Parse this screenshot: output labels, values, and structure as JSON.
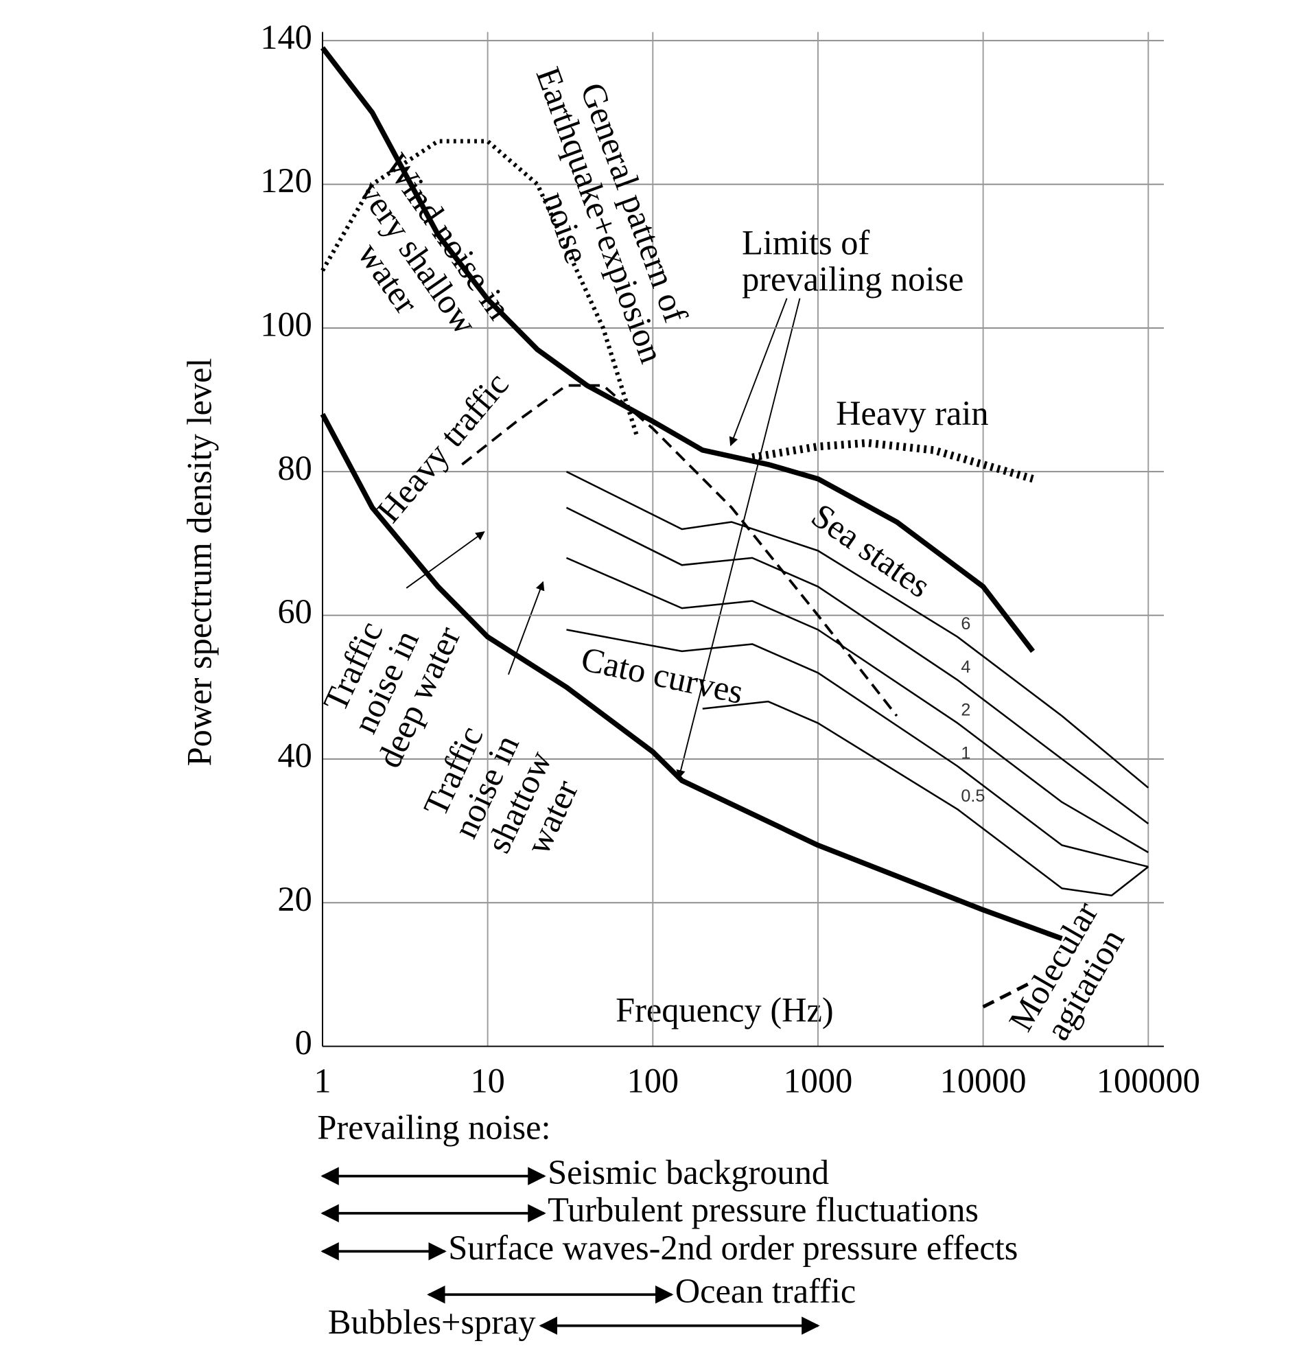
{
  "chart_data": {
    "type": "line",
    "xlabel": "Frequency (Hz)",
    "ylabel": "Power spectrum density level",
    "xscale": "log",
    "xlim": [
      1,
      100000
    ],
    "xticks": [
      1,
      10,
      100,
      1000,
      10000,
      100000
    ],
    "ylim": [
      0,
      140
    ],
    "yticks": [
      0,
      20,
      40,
      60,
      80,
      100,
      120,
      140
    ],
    "grid": true,
    "series": [
      {
        "color": "#000000",
        "style": "solid",
        "width": 6,
        "x": [
          1,
          2,
          5,
          10,
          20,
          40,
          100,
          200,
          500,
          1000,
          3000,
          10000,
          20000
        ],
        "values": [
          139,
          130,
          113,
          104,
          97,
          92,
          87,
          83,
          81,
          79,
          73,
          64,
          55
        ]
      },
      {
        "color": "#000000",
        "style": "solid",
        "width": 6,
        "x": [
          1,
          2,
          5,
          10,
          30,
          100,
          150,
          1000,
          10000,
          30000
        ],
        "values": [
          88,
          75,
          64,
          57,
          50,
          41,
          37,
          28,
          19,
          15
        ]
      },
      {
        "color": "#000000",
        "style": "dotted",
        "width": 9,
        "x": [
          400,
          1000,
          2000,
          5000,
          10000,
          20000
        ],
        "values": [
          82,
          83.5,
          84,
          83,
          81,
          79
        ]
      },
      {
        "color": "#000000",
        "style": "dotted",
        "width": 5,
        "x": [
          1,
          2,
          5,
          10,
          20,
          50,
          80
        ],
        "values": [
          108,
          120,
          126,
          126,
          120,
          100,
          85
        ]
      },
      {
        "color": "#000000",
        "style": "dashed",
        "width": 3,
        "x": [
          7,
          15,
          30,
          50,
          100,
          300,
          1000,
          3000
        ],
        "values": [
          81,
          87,
          92,
          92,
          86,
          75,
          60,
          46
        ]
      },
      {
        "name": "6",
        "color": "#000000",
        "style": "solid",
        "width": 2,
        "x": [
          30,
          150,
          300,
          1000,
          7000,
          30000,
          100000
        ],
        "values": [
          80,
          72,
          73,
          69,
          57,
          46,
          36
        ]
      },
      {
        "name": "4",
        "color": "#000000",
        "style": "solid",
        "width": 2,
        "x": [
          30,
          150,
          400,
          1000,
          7000,
          30000,
          100000
        ],
        "values": [
          75,
          67,
          68,
          64,
          51,
          40,
          31
        ]
      },
      {
        "name": "2",
        "color": "#000000",
        "style": "solid",
        "width": 2,
        "x": [
          30,
          150,
          400,
          1000,
          7000,
          30000,
          100000
        ],
        "values": [
          68,
          61,
          62,
          58,
          45,
          34,
          27
        ]
      },
      {
        "name": "1",
        "color": "#000000",
        "style": "solid",
        "width": 2,
        "x": [
          30,
          150,
          400,
          1000,
          7000,
          30000,
          100000
        ],
        "values": [
          58,
          55,
          56,
          52,
          39,
          28,
          25
        ]
      },
      {
        "name": "0.5",
        "color": "#000000",
        "style": "solid",
        "width": 2,
        "x": [
          200,
          500,
          1000,
          7000,
          30000,
          60000,
          100000
        ],
        "values": [
          47,
          48,
          45,
          33,
          22,
          21,
          25
        ]
      },
      {
        "color": "#000000",
        "style": "dashed",
        "width": 4,
        "x": [
          10000,
          20000
        ],
        "values": [
          5.5,
          9
        ]
      }
    ],
    "annotations": [
      {
        "lines": [
          "Wind noise in",
          "very shallow",
          "water"
        ]
      },
      {
        "lines": [
          "General pattern of",
          "Earthquake+expiosion",
          "noise"
        ]
      },
      {
        "lines": [
          "Limits of",
          "prevailing noise"
        ]
      },
      {
        "lines": [
          "Heavy traffic"
        ]
      },
      {
        "lines": [
          "Heavy rain"
        ]
      },
      {
        "lines": [
          "Sea states"
        ]
      },
      {
        "lines": [
          "Cato curves"
        ]
      },
      {
        "lines": [
          "Traffic",
          "noise in",
          "deep water"
        ]
      },
      {
        "lines": [
          "Traffic",
          "noise in",
          "shattow",
          "water"
        ]
      },
      {
        "lines": [
          "Molecular",
          "agitation"
        ]
      }
    ],
    "ranges_title": "Prevailing noise:",
    "ranges": [
      {
        "label": "Seismic background",
        "x": [
          1,
          22
        ]
      },
      {
        "label": "Turbulent pressure fluctuations",
        "x": [
          1,
          22
        ]
      },
      {
        "label": "Surface waves-2nd order pressure effects",
        "x": [
          1,
          5.5
        ]
      },
      {
        "label": "Ocean traffic",
        "x": [
          4.4,
          130
        ]
      },
      {
        "label": "Bubbles+spray",
        "x": [
          21,
          1000
        ]
      }
    ]
  }
}
